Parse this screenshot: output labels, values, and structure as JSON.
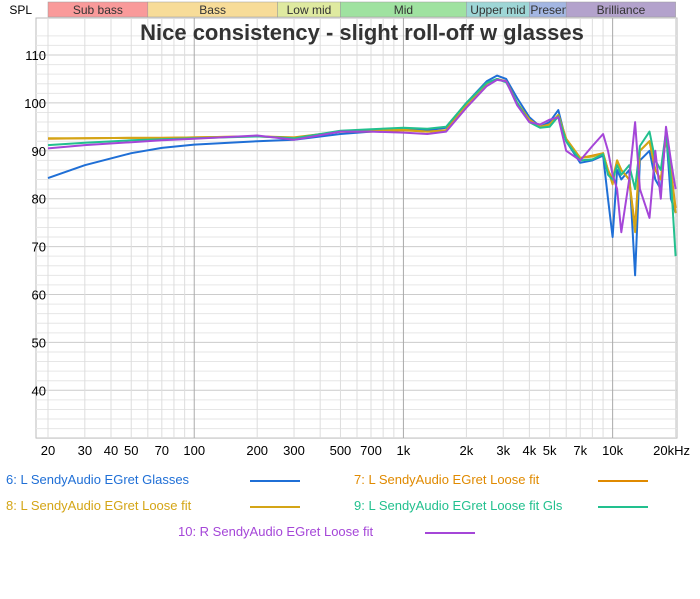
{
  "chart_data": {
    "type": "line",
    "title": "Nice consistency - slight roll-off w glasses",
    "ylabel": "SPL",
    "x_scale": "log",
    "xlim": [
      20,
      20000
    ],
    "ylim": [
      30,
      115
    ],
    "grid": true,
    "legend_placement": "bottom",
    "x_ticks": [
      "20",
      "30",
      "40",
      "50",
      "70",
      "100",
      "200",
      "300",
      "500",
      "700",
      "1k",
      "2k",
      "3k",
      "4k",
      "5k",
      "7k",
      "10k",
      "20kHz"
    ],
    "y_ticks": [
      "110",
      "100",
      "90",
      "80",
      "70",
      "60",
      "50",
      "40"
    ],
    "bands": [
      {
        "label": "Sub bass",
        "from": 20,
        "to": 60,
        "color": "#f99a9a"
      },
      {
        "label": "Bass",
        "from": 60,
        "to": 250,
        "color": "#f7dc98"
      },
      {
        "label": "Low mid",
        "from": 250,
        "to": 500,
        "color": "#dfeaa0"
      },
      {
        "label": "Mid",
        "from": 500,
        "to": 2000,
        "color": "#9fe2a0"
      },
      {
        "label": "Upper mid",
        "from": 2000,
        "to": 4000,
        "color": "#9ed6d6"
      },
      {
        "label": "Presence",
        "from": 4000,
        "to": 6000,
        "color": "#a3b6e2"
      },
      {
        "label": "Brilliance",
        "from": 6000,
        "to": 20000,
        "color": "#b3a2cc"
      }
    ],
    "series": [
      {
        "name": "6: L SendyAudio EGret Glasses",
        "color": "#1f6fd6",
        "x": [
          20,
          30,
          50,
          70,
          100,
          200,
          300,
          500,
          700,
          1000,
          1300,
          1600,
          2000,
          2500,
          2800,
          3100,
          3500,
          4000,
          4500,
          5000,
          5500,
          6000,
          7000,
          8000,
          9000,
          9500,
          10000,
          10500,
          11000,
          12000,
          12800,
          13500,
          15000,
          16000,
          17000,
          18000,
          19000,
          20000
        ],
        "y": [
          84.3,
          87,
          89.5,
          90.6,
          91.3,
          92,
          92.3,
          93.5,
          94,
          94.5,
          94.3,
          94.8,
          100,
          104.5,
          105.7,
          105,
          101,
          97,
          95,
          96,
          98.5,
          92,
          87.5,
          88,
          89,
          80,
          72,
          86,
          84,
          86,
          64,
          88,
          90,
          84,
          82,
          94,
          80,
          77
        ]
      },
      {
        "name": "7: L SendyAudio EGret Loose fit",
        "color": "#e08a00",
        "x": [
          20,
          30,
          50,
          70,
          100,
          200,
          300,
          500,
          700,
          1000,
          1300,
          1600,
          2000,
          2500,
          2800,
          3100,
          3500,
          4000,
          4500,
          5000,
          5500,
          6000,
          7000,
          8000,
          9000,
          9500,
          10000,
          10500,
          11000,
          12000,
          12800,
          13500,
          15000,
          16000,
          17000,
          18000,
          19000,
          20000
        ],
        "y": [
          92.5,
          92.6,
          92.7,
          92.7,
          92.8,
          93,
          92.8,
          94,
          94,
          94.3,
          94,
          94.3,
          99.5,
          104,
          105,
          104.5,
          100,
          96.5,
          95,
          95.5,
          97.5,
          92.5,
          88.5,
          89,
          89.5,
          86,
          84,
          88,
          86,
          84,
          74,
          90,
          92,
          86,
          84,
          93,
          86,
          78
        ]
      },
      {
        "name": "8: L SendyAudio EGret Loose fit",
        "color": "#d4a516",
        "x": [
          20,
          30,
          50,
          70,
          100,
          200,
          300,
          500,
          700,
          1000,
          1300,
          1600,
          2000,
          2500,
          2800,
          3100,
          3500,
          4000,
          4500,
          5000,
          5500,
          6000,
          7000,
          8000,
          9000,
          9500,
          10000,
          10500,
          11000,
          12000,
          12800,
          13500,
          15000,
          16000,
          17000,
          18000,
          19000,
          20000
        ],
        "y": [
          92.6,
          92.6,
          92.7,
          92.7,
          92.8,
          93,
          92.7,
          94,
          94.2,
          94.4,
          94,
          94.2,
          99.5,
          104,
          105,
          104.5,
          100,
          96.5,
          95,
          95.5,
          97.5,
          92.5,
          88.5,
          88.8,
          89.5,
          86,
          83,
          88,
          86,
          84,
          73,
          90,
          92,
          86,
          84,
          93,
          86,
          77
        ]
      },
      {
        "name": "9: L SendyAudio EGret Loose fit Gls",
        "color": "#22c08e",
        "x": [
          20,
          30,
          50,
          70,
          100,
          200,
          300,
          500,
          700,
          1000,
          1300,
          1600,
          2000,
          2500,
          2800,
          3100,
          3500,
          4000,
          4500,
          5000,
          5500,
          6000,
          7000,
          8000,
          9000,
          9500,
          10000,
          10500,
          11000,
          12000,
          12800,
          13500,
          15000,
          16000,
          17000,
          18000,
          19000,
          20000
        ],
        "y": [
          91.2,
          91.7,
          92.2,
          92.4,
          92.6,
          93,
          92.6,
          94.2,
          94.5,
          94.8,
          94.6,
          95,
          100,
          104.2,
          105,
          104.3,
          100,
          96,
          94.8,
          95,
          97.2,
          92,
          88,
          88.2,
          89.3,
          85,
          84,
          87,
          85,
          87,
          82,
          91,
          94,
          88,
          86,
          94,
          84,
          68
        ]
      },
      {
        "name": "10: R SendyAudio EGret Loose fit",
        "color": "#a546d8",
        "x": [
          20,
          30,
          50,
          70,
          100,
          200,
          300,
          500,
          700,
          1000,
          1300,
          1600,
          2000,
          2500,
          2800,
          3100,
          3500,
          4000,
          4500,
          5000,
          5500,
          6000,
          7000,
          8000,
          9000,
          9500,
          10000,
          10500,
          11000,
          12000,
          12800,
          13500,
          15000,
          16000,
          17000,
          18000,
          19000,
          20000
        ],
        "y": [
          90.5,
          91.2,
          91.8,
          92.2,
          92.5,
          93.2,
          92.3,
          94,
          94,
          93.8,
          93.5,
          94,
          99,
          103.5,
          104.8,
          104.5,
          99.5,
          96,
          95.5,
          96.5,
          97,
          90,
          88,
          91,
          93.5,
          90,
          85,
          82,
          73,
          84,
          96,
          82,
          76,
          90,
          80,
          95,
          88,
          82
        ]
      }
    ]
  }
}
